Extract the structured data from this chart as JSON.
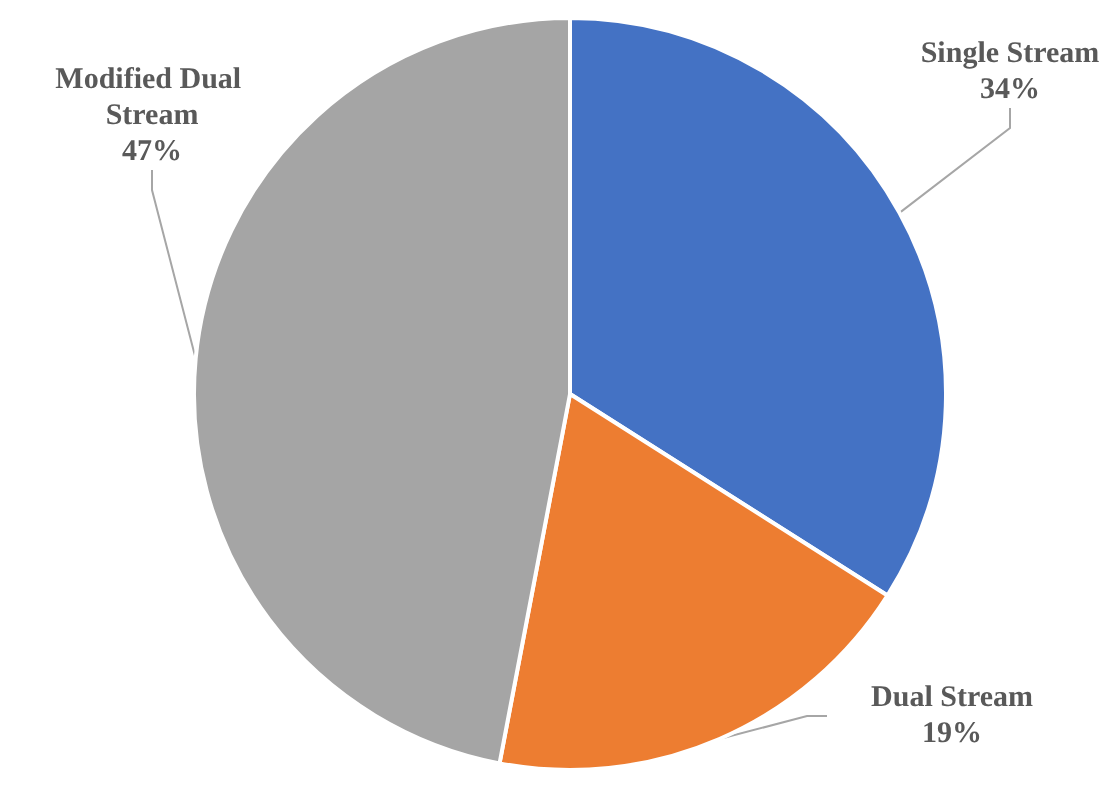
{
  "chart_data": {
    "type": "pie",
    "categories": [
      "Single Stream",
      "Dual Stream",
      "Modified Dual Stream"
    ],
    "values": [
      34,
      19,
      47
    ],
    "value_labels": [
      "34%",
      "19%",
      "47%"
    ],
    "colors": [
      "#4472c4",
      "#ed7d31",
      "#a5a5a5"
    ]
  }
}
